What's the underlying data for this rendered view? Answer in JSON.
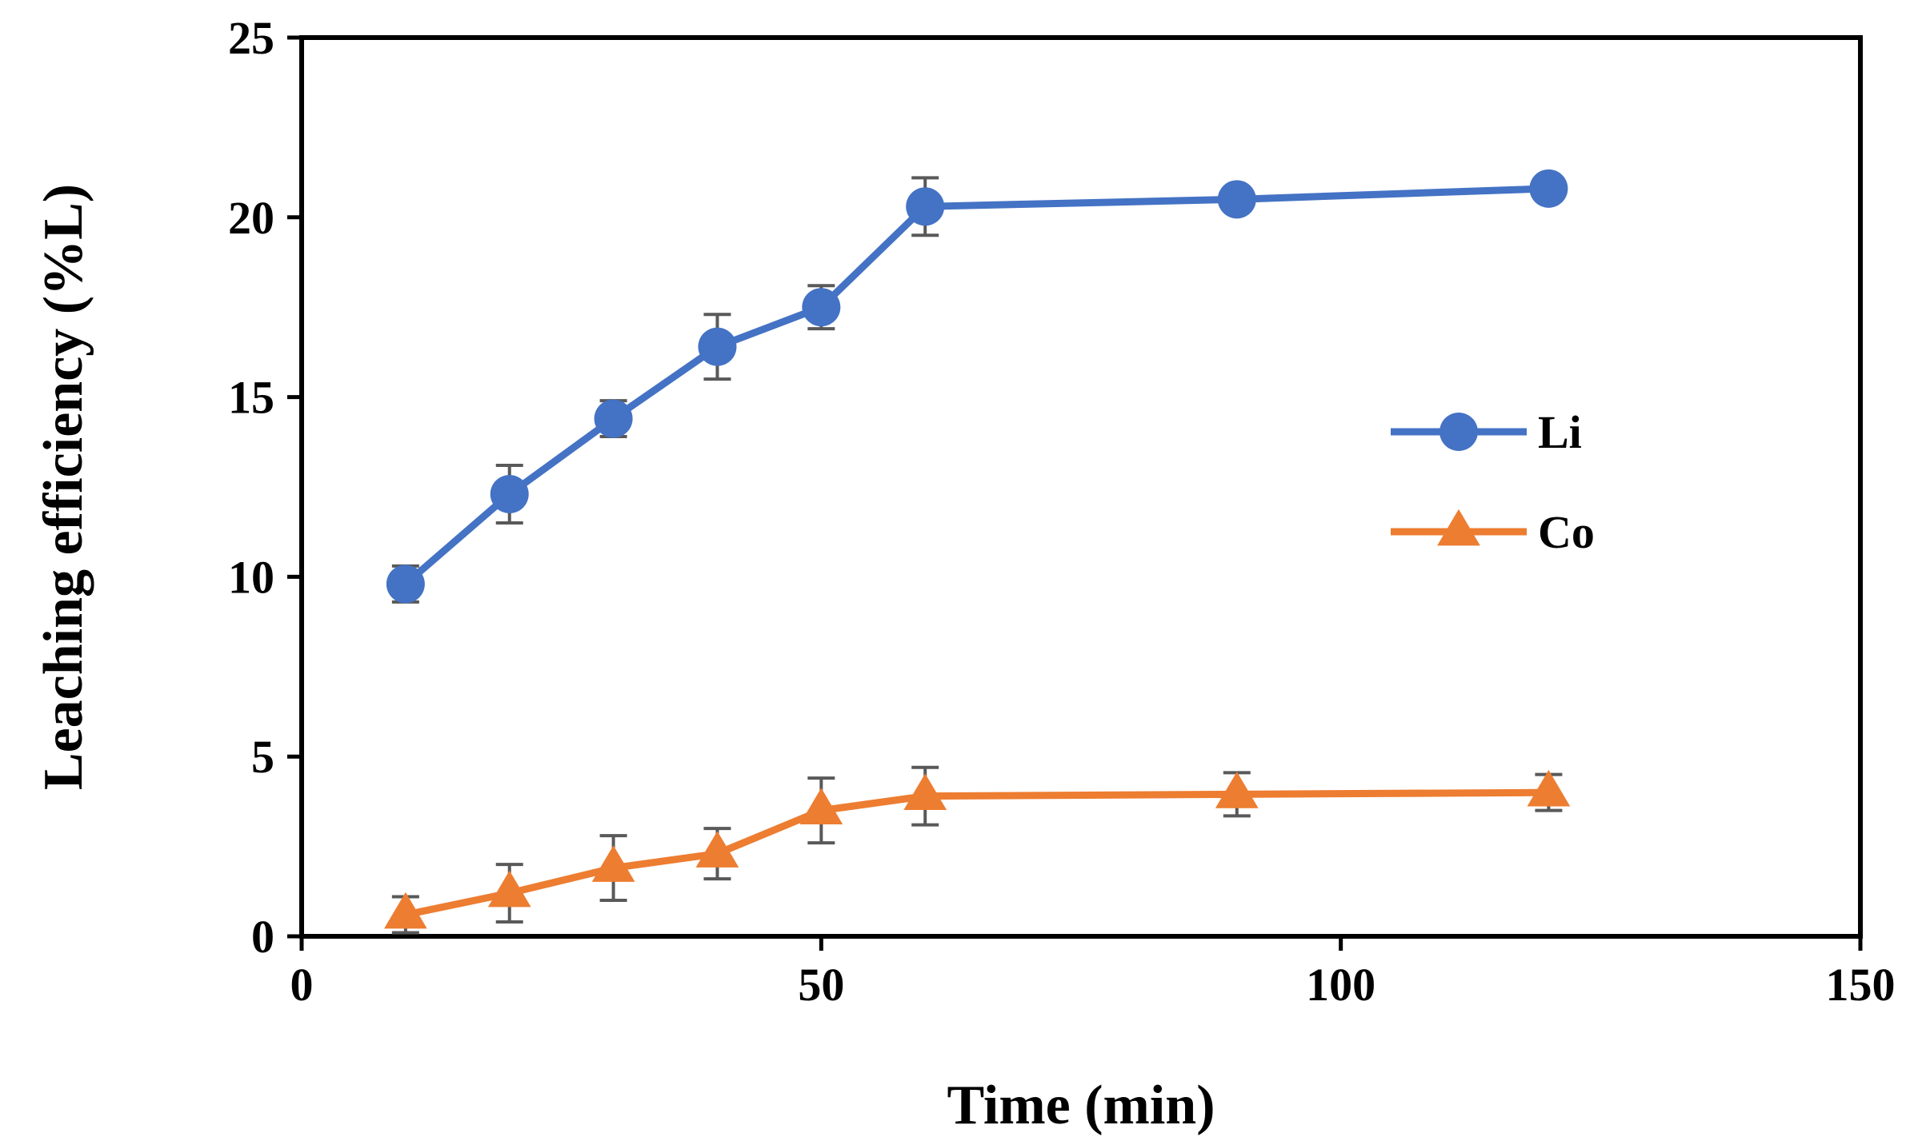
{
  "chart_data": {
    "type": "line",
    "title": "",
    "xlabel": "Time (min)",
    "ylabel": "Leaching efficiency (%L)",
    "xlim": [
      0,
      150
    ],
    "ylim": [
      0,
      25
    ],
    "xticks": [
      0,
      50,
      100,
      150
    ],
    "yticks": [
      0,
      5,
      10,
      15,
      20,
      25
    ],
    "grid": false,
    "legend_position": "right",
    "series": [
      {
        "name": "Li",
        "marker": "circle",
        "color": "#4472C4",
        "x": [
          10,
          20,
          30,
          40,
          50,
          60,
          90,
          120
        ],
        "y": [
          9.8,
          12.3,
          14.4,
          16.4,
          17.5,
          20.3,
          20.5,
          20.8
        ],
        "error": [
          0.5,
          0.8,
          0.5,
          0.9,
          0.6,
          0.8,
          0.2,
          0.3
        ]
      },
      {
        "name": "Co",
        "marker": "triangle",
        "color": "#ED7D31",
        "x": [
          10,
          20,
          30,
          40,
          50,
          60,
          90,
          120
        ],
        "y": [
          0.6,
          1.2,
          1.9,
          2.3,
          3.5,
          3.9,
          3.95,
          4.0
        ],
        "error": [
          0.5,
          0.8,
          0.9,
          0.7,
          0.9,
          0.8,
          0.6,
          0.5
        ]
      }
    ]
  },
  "colors": {
    "axis": "#000000",
    "error_bar": "#595959"
  }
}
